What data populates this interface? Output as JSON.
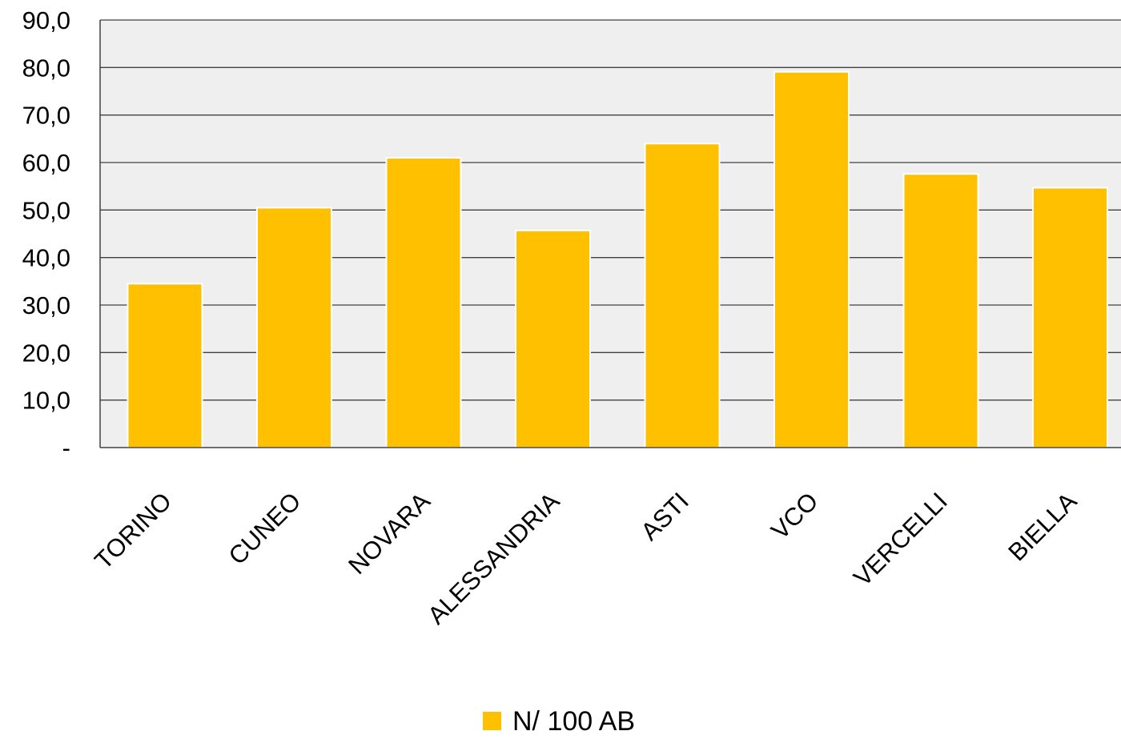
{
  "chart_data": {
    "type": "bar",
    "categories": [
      "TORINO",
      "CUNEO",
      "NOVARA",
      "ALESSANDRIA",
      "ASTI",
      "VCO",
      "VERCELLI",
      "BIELLA"
    ],
    "series": [
      {
        "name": "N/ 100 AB",
        "color": "#ffc000",
        "values": [
          34.5,
          50.5,
          61.0,
          45.7,
          64.0,
          79.1,
          57.6,
          54.7
        ]
      }
    ],
    "title": "",
    "xlabel": "",
    "ylabel": "",
    "ylim": [
      0,
      90
    ],
    "yticks": [
      0,
      10,
      20,
      30,
      40,
      50,
      60,
      70,
      80,
      90
    ],
    "ytick_labels": [
      "-",
      "10,0",
      "20,0",
      "30,0",
      "40,0",
      "50,0",
      "60,0",
      "70,0",
      "80,0",
      "90,0"
    ],
    "grid": true,
    "plot_background": "#efefef",
    "legend_position": "bottom-center"
  }
}
